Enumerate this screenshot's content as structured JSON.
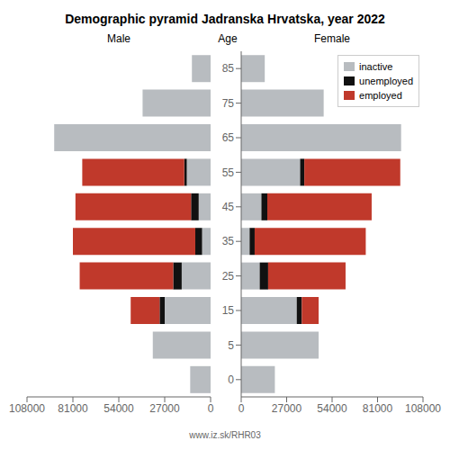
{
  "chart_data": [
    {
      "type": "bar",
      "title": "Demographic pyramid Jadranska Hrvatska, year 2022",
      "orientation": "horizontal",
      "stacked": true,
      "xlabel": "Male",
      "categories": [
        "0",
        "5",
        "15",
        "25",
        "35",
        "45",
        "55",
        "65",
        "75",
        "85"
      ],
      "series": [
        {
          "name": "inactive",
          "color": "#b8bcc0",
          "values": [
            12000,
            34000,
            27000,
            17000,
            5000,
            7000,
            14000,
            92000,
            40000,
            11000
          ]
        },
        {
          "name": "unemployed",
          "color": "#111111",
          "values": [
            0,
            0,
            3000,
            5000,
            4000,
            4500,
            1500,
            0,
            0,
            0
          ]
        },
        {
          "name": "employed",
          "color": "#c0392b",
          "values": [
            0,
            0,
            17000,
            55000,
            72000,
            68000,
            60000,
            0,
            0,
            0
          ]
        }
      ],
      "xlim": [
        0,
        108000
      ],
      "xticks": [
        0,
        27000,
        54000,
        81000,
        108000
      ],
      "tick_labels": "x",
      "grid": false,
      "annotations": [
        "Age",
        "www.iz.sk/RHR03"
      ]
    },
    {
      "type": "bar",
      "orientation": "horizontal",
      "stacked": true,
      "xlabel": "Female",
      "categories": [
        "0",
        "5",
        "15",
        "25",
        "35",
        "45",
        "55",
        "65",
        "75",
        "85"
      ],
      "series": [
        {
          "name": "inactive",
          "color": "#b8bcc0",
          "values": [
            20000,
            46000,
            33000,
            11000,
            5000,
            12000,
            35000,
            95000,
            49000,
            14000
          ]
        },
        {
          "name": "unemployed",
          "color": "#111111",
          "values": [
            0,
            0,
            3000,
            5000,
            3000,
            3500,
            2500,
            0,
            0,
            0
          ]
        },
        {
          "name": "employed",
          "color": "#c0392b",
          "values": [
            0,
            0,
            10000,
            46000,
            66000,
            62000,
            57000,
            0,
            0,
            0
          ]
        }
      ],
      "xlim": [
        0,
        108000
      ],
      "xticks": [
        0,
        27000,
        54000,
        81000,
        108000
      ],
      "grid": false,
      "legend": "upper right"
    }
  ]
}
